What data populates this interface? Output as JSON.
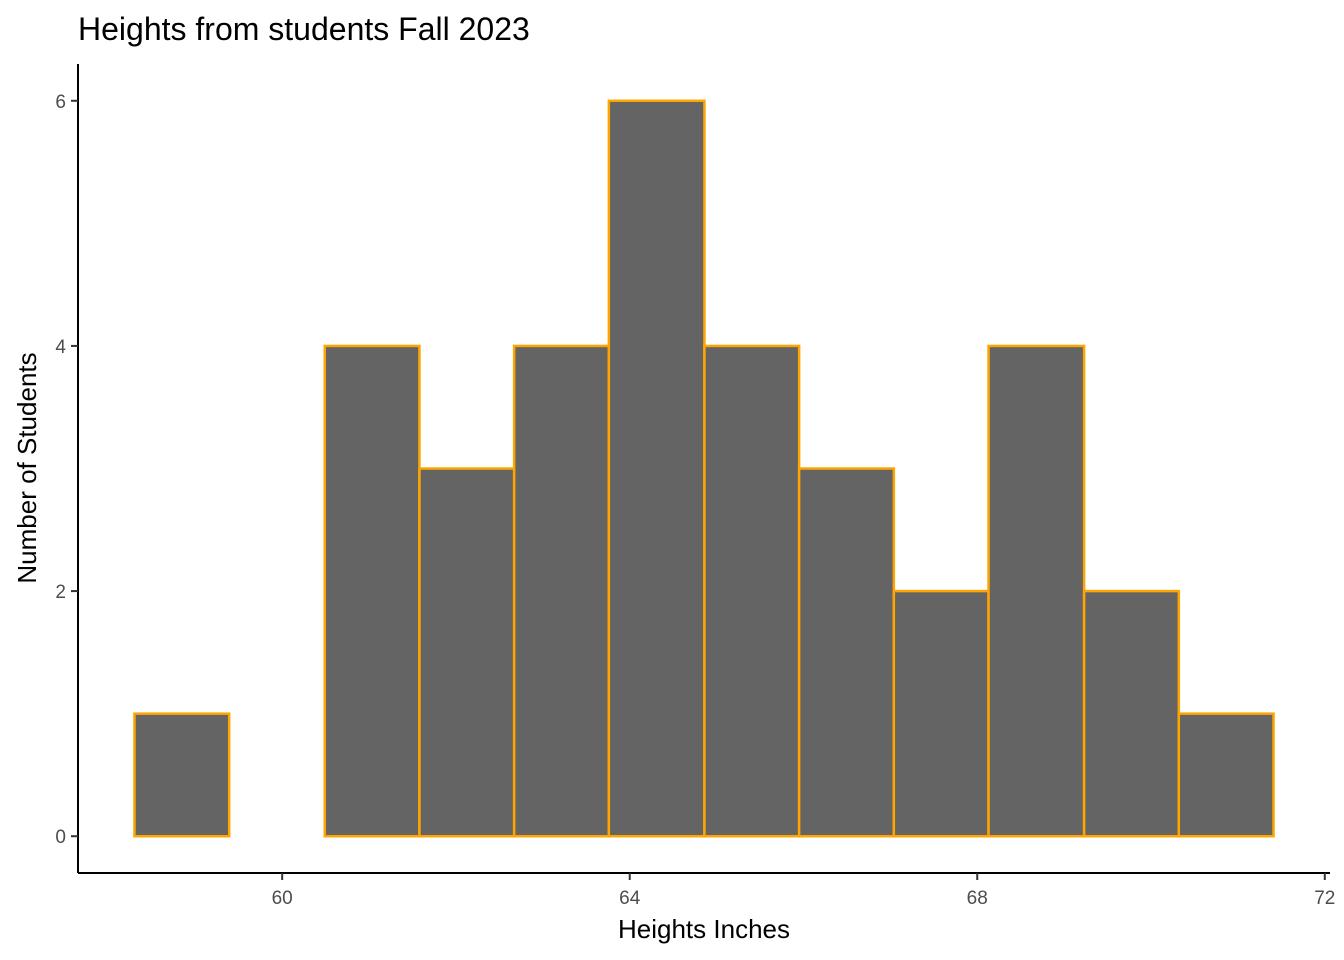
{
  "chart_data": {
    "type": "bar",
    "title": "Heights from students Fall 2023",
    "xlabel": "Heights Inches",
    "ylabel": "Number of Students",
    "bins": [
      {
        "x0": 58.3,
        "x1": 59.39,
        "count": 1
      },
      {
        "x0": 59.39,
        "x1": 60.49,
        "count": 0
      },
      {
        "x0": 60.49,
        "x1": 61.58,
        "count": 4
      },
      {
        "x0": 61.58,
        "x1": 62.67,
        "count": 3
      },
      {
        "x0": 62.67,
        "x1": 63.76,
        "count": 4
      },
      {
        "x0": 63.76,
        "x1": 64.86,
        "count": 6
      },
      {
        "x0": 64.86,
        "x1": 65.95,
        "count": 4
      },
      {
        "x0": 65.95,
        "x1": 67.04,
        "count": 3
      },
      {
        "x0": 67.04,
        "x1": 68.13,
        "count": 2
      },
      {
        "x0": 68.13,
        "x1": 69.23,
        "count": 4
      },
      {
        "x0": 69.23,
        "x1": 70.32,
        "count": 2
      },
      {
        "x0": 70.32,
        "x1": 71.41,
        "count": 1
      }
    ],
    "xlim": [
      57.65,
      72.06
    ],
    "ylim": [
      -0.3,
      6.3
    ],
    "xticks": [
      60,
      64,
      68,
      72
    ],
    "yticks": [
      0,
      2,
      4,
      6
    ],
    "xtick_labels": [
      "60",
      "64",
      "68",
      "72"
    ],
    "ytick_labels": [
      "0",
      "2",
      "4",
      "6"
    ],
    "grid": false,
    "bar_fill": "#646464",
    "bar_outline": "#FFA500"
  }
}
